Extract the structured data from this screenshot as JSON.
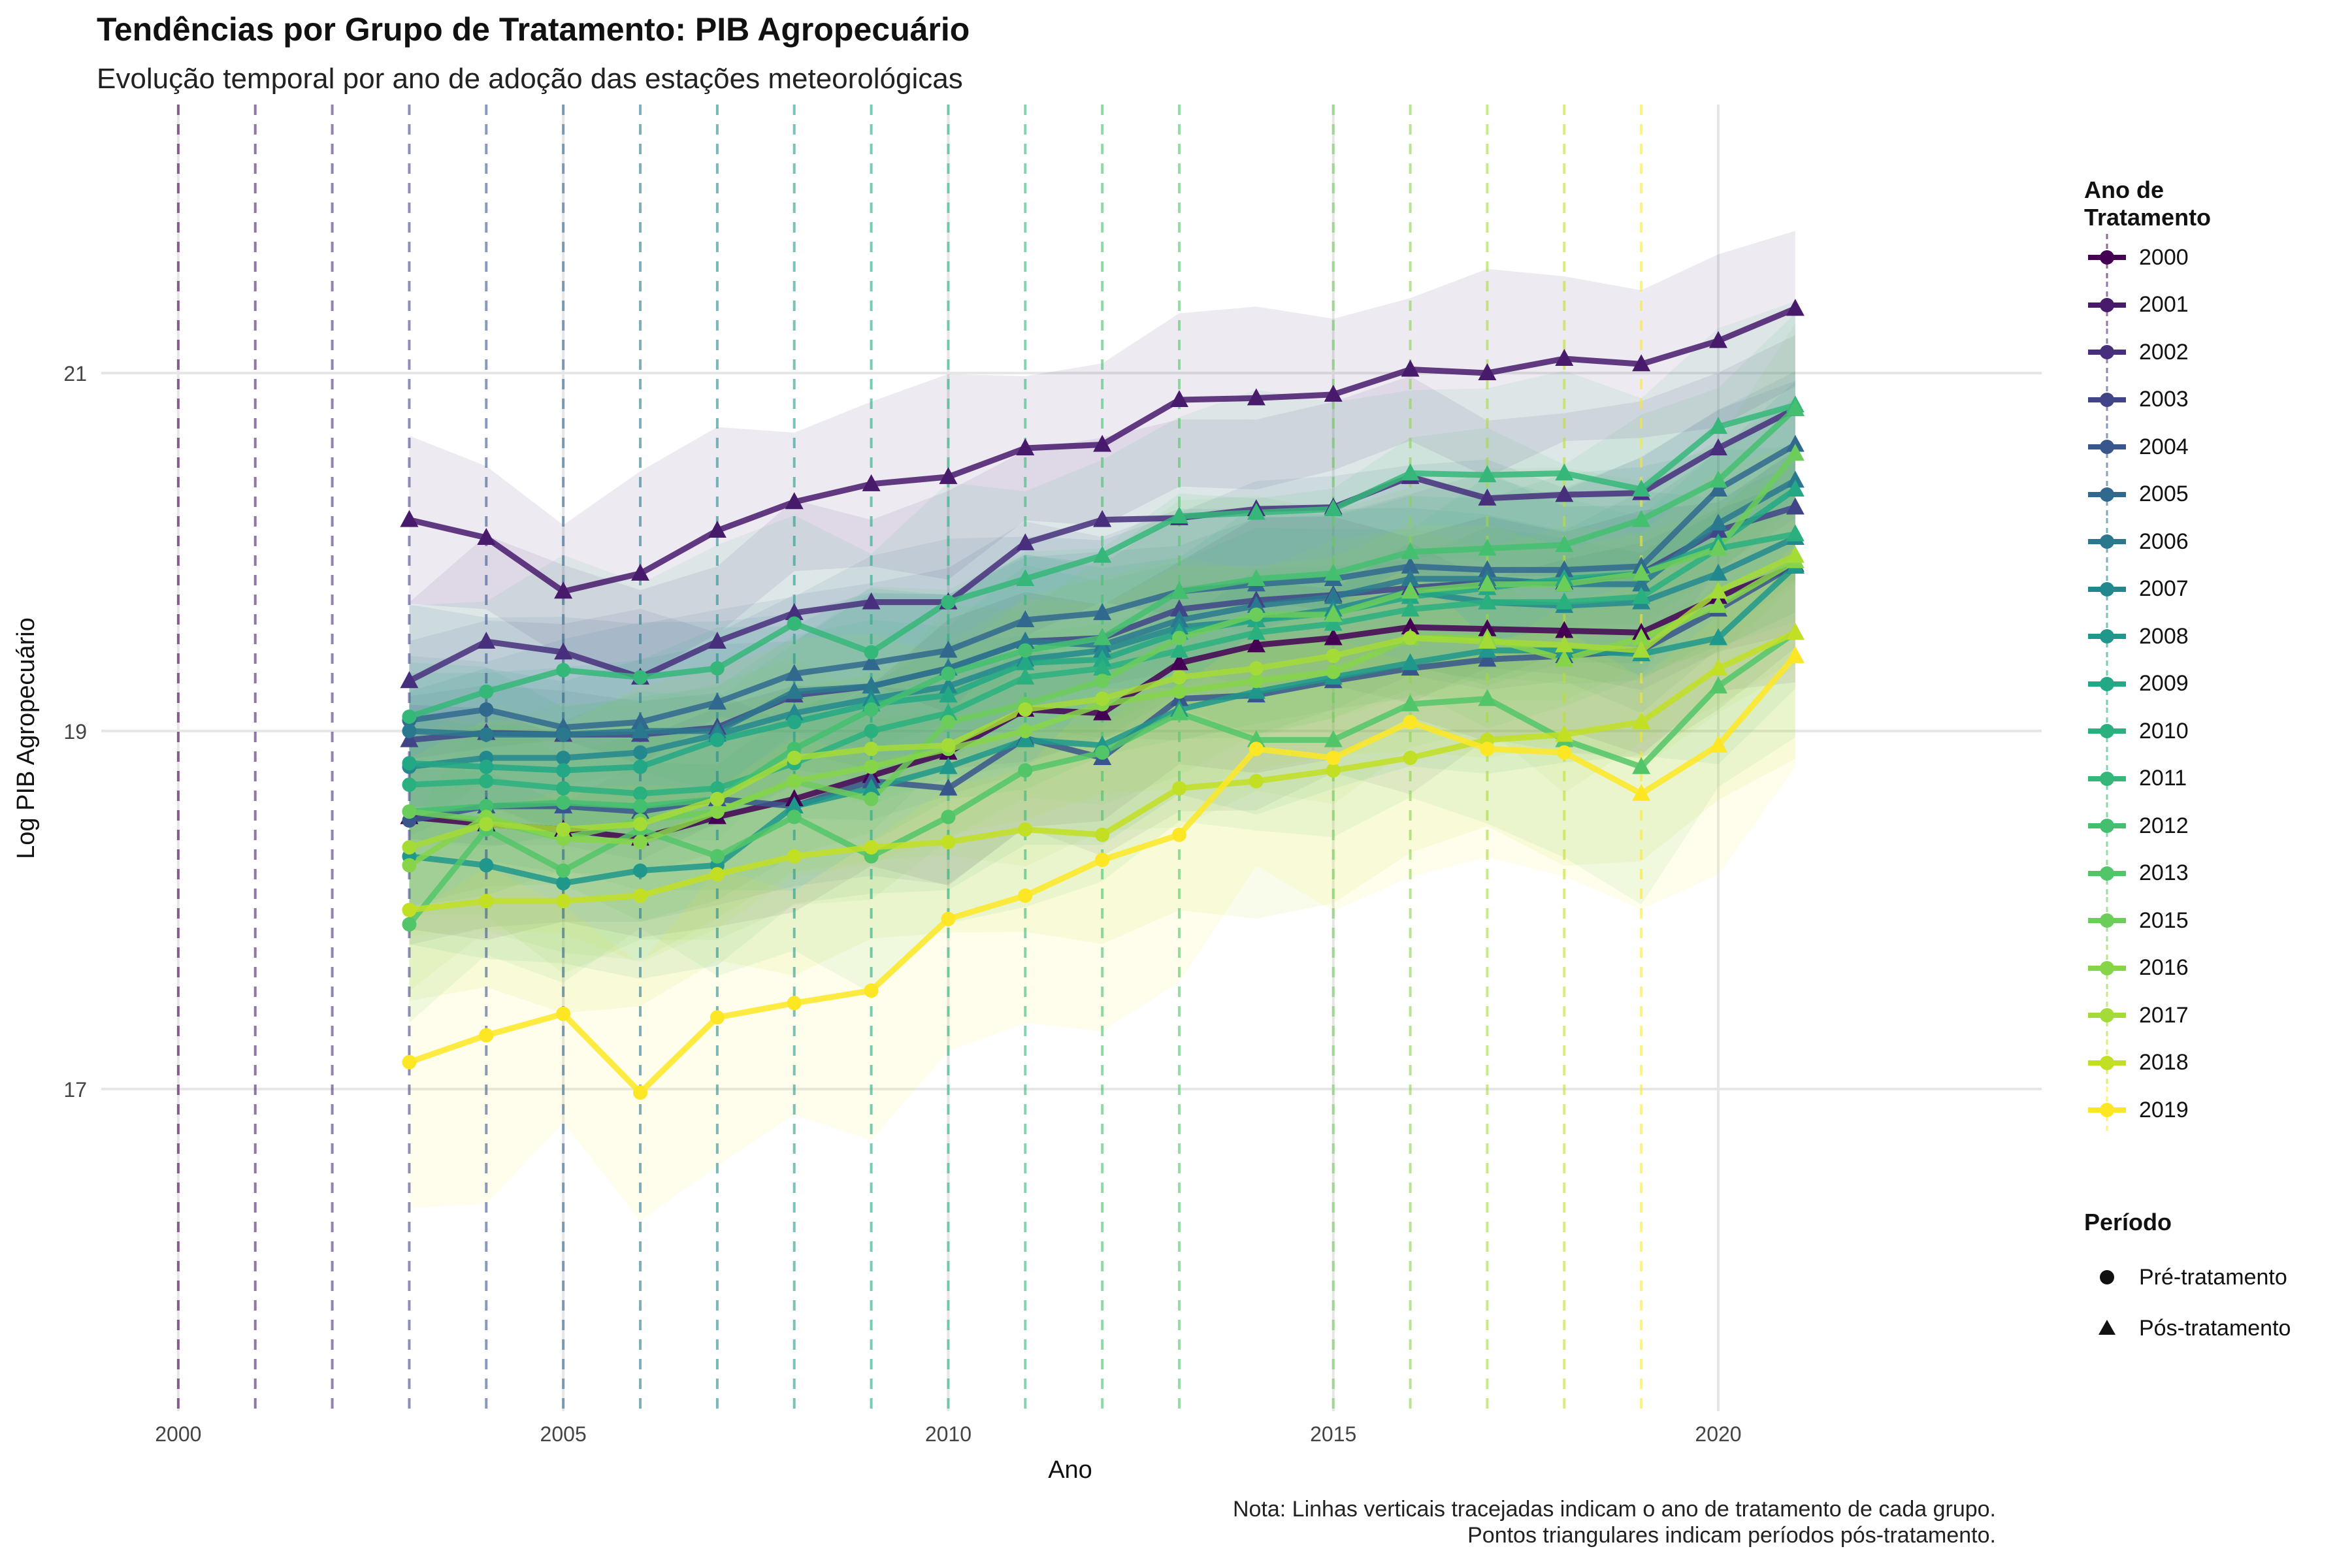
{
  "title": "Tendências por Grupo de Tratamento: PIB Agropecuário",
  "subtitle": "Evolução temporal por ano de adoção das estações meteorológicas",
  "caption": {
    "line1": "Nota: Linhas verticais tracejadas indicam o ano de tratamento de cada grupo.",
    "line2": "Pontos triangulares indicam períodos pós-tratamento."
  },
  "chart_data": {
    "type": "line",
    "xlabel": "Ano",
    "ylabel": "Log PIB Agropecuário",
    "xlim": [
      1999,
      2024.2
    ],
    "ylim": [
      15.2,
      22.5
    ],
    "x_ticks": [
      2000,
      2005,
      2010,
      2015,
      2020
    ],
    "y_ticks": [
      17,
      19,
      21
    ],
    "grid": true,
    "legend_title": "Ano de Tratamento",
    "legend_position": "right",
    "shape_legend": {
      "title": "Período",
      "items": [
        {
          "label": "Pré-tratamento",
          "shape": "circle"
        },
        {
          "label": "Pós-tratamento",
          "shape": "triangle"
        }
      ]
    },
    "x": [
      2003,
      2004,
      2005,
      2006,
      2007,
      2008,
      2009,
      2010,
      2011,
      2012,
      2013,
      2014,
      2015,
      2016,
      2017,
      2018,
      2019,
      2020,
      2021
    ],
    "series": [
      {
        "name": "2000",
        "color": "#440154",
        "treat": 2000,
        "band": 0.6,
        "values": [
          18.52,
          18.48,
          18.45,
          18.4,
          18.52,
          18.62,
          18.75,
          18.88,
          19.12,
          19.1,
          19.38,
          19.48,
          19.52,
          19.58,
          19.57,
          19.56,
          19.55,
          19.75,
          19.92
        ]
      },
      {
        "name": "2001",
        "color": "#481a6c",
        "treat": 2001,
        "band": 0.45,
        "values": [
          20.18,
          20.08,
          19.78,
          19.88,
          20.12,
          20.28,
          20.38,
          20.42,
          20.58,
          20.6,
          20.85,
          20.86,
          20.88,
          21.02,
          21.0,
          21.08,
          21.05,
          21.18,
          21.36
        ]
      },
      {
        "name": "2002",
        "color": "#472f7d",
        "treat": 2002,
        "band": 0.5,
        "values": [
          19.28,
          19.5,
          19.44,
          19.3,
          19.5,
          19.66,
          19.72,
          19.72,
          20.05,
          20.18,
          20.19,
          20.24,
          20.25,
          20.42,
          20.3,
          20.32,
          20.33,
          20.58,
          20.8
        ]
      },
      {
        "name": "2003",
        "color": "#414487",
        "treat": 2003,
        "band": 0.55,
        "values": [
          18.95,
          18.99,
          18.98,
          18.98,
          19.02,
          19.2,
          19.25,
          19.35,
          19.5,
          19.52,
          19.68,
          19.73,
          19.76,
          19.8,
          19.83,
          19.83,
          19.88,
          20.12,
          20.25
        ]
      },
      {
        "name": "2004",
        "color": "#39568c",
        "treat": 2004,
        "band": 0.55,
        "values": [
          18.5,
          18.58,
          18.58,
          18.55,
          18.62,
          18.58,
          18.72,
          18.68,
          18.96,
          18.85,
          19.18,
          19.2,
          19.28,
          19.35,
          19.4,
          19.42,
          19.45,
          19.68,
          19.93
        ]
      },
      {
        "name": "2005",
        "color": "#31688e",
        "treat": 2005,
        "band": 0.5,
        "values": [
          19.06,
          19.12,
          19.02,
          19.05,
          19.16,
          19.32,
          19.38,
          19.45,
          19.62,
          19.66,
          19.78,
          19.82,
          19.85,
          19.92,
          19.9,
          19.9,
          19.92,
          20.35,
          20.6
        ]
      },
      {
        "name": "2006",
        "color": "#2a788e",
        "treat": 2006,
        "band": 0.5,
        "values": [
          19.0,
          18.98,
          18.98,
          19.0,
          19.0,
          19.22,
          19.25,
          19.35,
          19.5,
          19.48,
          19.62,
          19.7,
          19.75,
          19.85,
          19.85,
          19.82,
          19.82,
          20.16,
          20.4
        ]
      },
      {
        "name": "2007",
        "color": "#23888e",
        "treat": 2007,
        "band": 0.5,
        "values": [
          18.8,
          18.85,
          18.85,
          18.88,
          18.98,
          19.1,
          19.18,
          19.25,
          19.4,
          19.45,
          19.58,
          19.62,
          19.68,
          19.78,
          19.72,
          19.7,
          19.72,
          19.88,
          20.08
        ]
      },
      {
        "name": "2008",
        "color": "#1f988b",
        "treat": 2008,
        "band": 0.55,
        "values": [
          18.3,
          18.25,
          18.15,
          18.22,
          18.25,
          18.58,
          18.68,
          18.8,
          18.95,
          18.92,
          19.12,
          19.22,
          19.3,
          19.38,
          19.45,
          19.45,
          19.43,
          19.52,
          19.92
        ]
      },
      {
        "name": "2009",
        "color": "#22a884",
        "treat": 2009,
        "band": 0.5,
        "values": [
          18.82,
          18.8,
          18.78,
          18.8,
          18.95,
          19.05,
          19.15,
          19.2,
          19.38,
          19.4,
          19.55,
          19.62,
          19.66,
          19.75,
          19.8,
          19.85,
          19.88,
          20.05,
          20.35
        ]
      },
      {
        "name": "2010",
        "color": "#2ab07f",
        "treat": 2010,
        "band": 0.55,
        "values": [
          18.7,
          18.72,
          18.68,
          18.65,
          18.68,
          18.82,
          19.0,
          19.1,
          19.3,
          19.35,
          19.45,
          19.55,
          19.6,
          19.68,
          19.72,
          19.72,
          19.75,
          20.02,
          20.1
        ]
      },
      {
        "name": "2011",
        "color": "#35b779",
        "treat": 2011,
        "band": 0.55,
        "values": [
          19.08,
          19.22,
          19.34,
          19.3,
          19.35,
          19.6,
          19.44,
          19.72,
          19.85,
          19.98,
          20.2,
          20.22,
          20.24,
          20.44,
          20.43,
          20.44,
          20.35,
          20.7,
          20.82
        ]
      },
      {
        "name": "2012",
        "color": "#44bf70",
        "treat": 2012,
        "band": 0.55,
        "values": [
          18.55,
          18.58,
          18.6,
          18.58,
          18.62,
          18.9,
          19.12,
          19.32,
          19.45,
          19.52,
          19.78,
          19.85,
          19.88,
          20.0,
          20.02,
          20.04,
          20.18,
          20.4,
          20.8
        ]
      },
      {
        "name": "2013",
        "color": "#52c569",
        "treat": 2013,
        "band": 0.6,
        "values": [
          17.92,
          18.45,
          18.22,
          18.45,
          18.3,
          18.52,
          18.3,
          18.52,
          18.78,
          18.88,
          19.1,
          18.95,
          18.95,
          19.15,
          19.18,
          18.95,
          18.8,
          19.25,
          19.55
        ]
      },
      {
        "name": "2015",
        "color": "#6ccd5a",
        "treat": 2015,
        "band": 0.6,
        "values": [
          18.55,
          18.5,
          18.4,
          18.5,
          18.55,
          18.72,
          18.62,
          19.05,
          19.15,
          19.28,
          19.52,
          19.65,
          19.65,
          19.78,
          19.82,
          19.82,
          19.88,
          20.02,
          20.55
        ]
      },
      {
        "name": "2016",
        "color": "#86d549",
        "treat": 2016,
        "band": 0.6,
        "values": [
          18.25,
          18.52,
          18.4,
          18.38,
          18.55,
          18.72,
          18.8,
          18.9,
          19.0,
          19.15,
          19.22,
          19.28,
          19.33,
          19.52,
          19.52,
          19.4,
          19.52,
          19.7,
          19.95
        ]
      },
      {
        "name": "2017",
        "color": "#a5db36",
        "treat": 2017,
        "band": 0.6,
        "values": [
          18.35,
          18.48,
          18.45,
          18.48,
          18.62,
          18.85,
          18.9,
          18.92,
          19.12,
          19.18,
          19.3,
          19.35,
          19.42,
          19.52,
          19.5,
          19.48,
          19.45,
          19.78,
          19.98
        ]
      },
      {
        "name": "2018",
        "color": "#c2df23",
        "treat": 2018,
        "band": 0.6,
        "values": [
          18.0,
          18.05,
          18.05,
          18.08,
          18.2,
          18.3,
          18.35,
          18.38,
          18.45,
          18.42,
          18.68,
          18.72,
          18.78,
          18.85,
          18.95,
          18.98,
          19.05,
          19.35,
          19.55
        ]
      },
      {
        "name": "2019",
        "color": "#fde725",
        "treat": 2019,
        "band": 0.75,
        "values": [
          17.15,
          17.3,
          17.42,
          16.98,
          17.4,
          17.48,
          17.55,
          17.95,
          18.08,
          18.28,
          18.42,
          18.9,
          18.85,
          19.05,
          18.9,
          18.88,
          18.65,
          18.92,
          19.42
        ]
      }
    ]
  }
}
